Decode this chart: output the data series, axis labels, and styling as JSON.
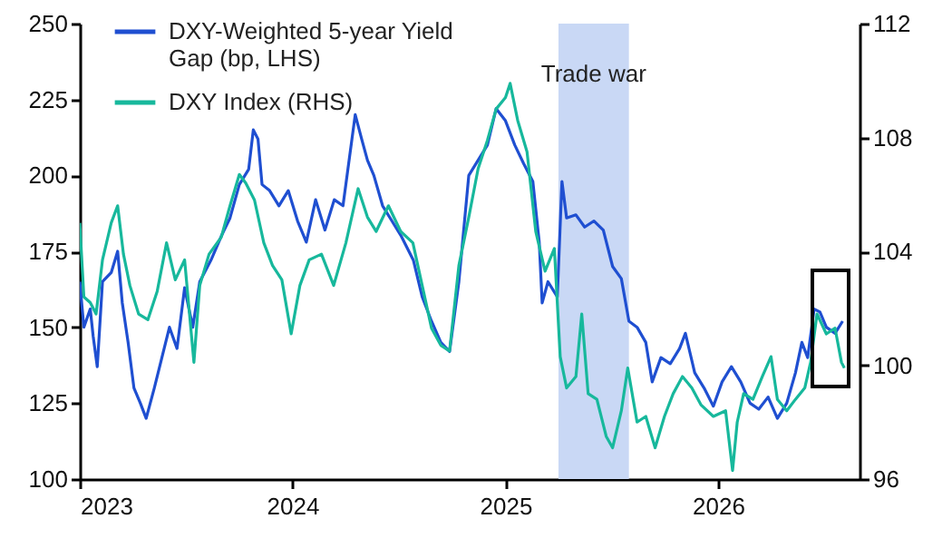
{
  "chart_data": {
    "type": "line",
    "xlim": [
      "2023-01-01",
      "2026-09-01"
    ],
    "xticks": [
      "2023",
      "2024",
      "2025",
      "2026"
    ],
    "ylim": [
      100,
      250
    ],
    "yticks": [
      100,
      125,
      150,
      175,
      200,
      225,
      250
    ],
    "y2lim": [
      96,
      112
    ],
    "y2ticks": [
      96,
      100,
      104,
      108,
      112
    ],
    "legend": "top left",
    "bands": [
      {
        "axis": "x",
        "from": "2025-04-02",
        "to": "2025-08-01",
        "label": "Trade war",
        "color": "#c9d8f5"
      }
    ],
    "series": [
      {
        "name": "DXY-Weighted 5-year Yield Gap (bp, LHS)",
        "color": "#1f4fd1",
        "axis": "y",
        "x": [
          "2023-01-01",
          "2023-01-08",
          "2023-01-19",
          "2023-01-24",
          "2023-01-31",
          "2023-02-09",
          "2023-02-24",
          "2023-03-07",
          "2023-03-15",
          "2023-03-25",
          "2023-04-04",
          "2023-04-15",
          "2023-04-25",
          "2023-05-09",
          "2023-05-22",
          "2023-06-04",
          "2023-06-17",
          "2023-06-30",
          "2023-07-14",
          "2023-07-26",
          "2023-08-14",
          "2023-09-01",
          "2023-09-16",
          "2023-10-02",
          "2023-10-18",
          "2023-10-26",
          "2023-11-03",
          "2023-11-10",
          "2023-11-23",
          "2023-12-09",
          "2023-12-25",
          "2024-01-10",
          "2024-01-25",
          "2024-02-10",
          "2024-02-26",
          "2024-03-13",
          "2024-03-28",
          "2024-04-18",
          "2024-04-29",
          "2024-05-09",
          "2024-05-20",
          "2024-06-04",
          "2024-06-20",
          "2024-07-06",
          "2024-07-27",
          "2024-08-11",
          "2024-08-27",
          "2024-09-12",
          "2024-09-27",
          "2024-10-13",
          "2024-10-30",
          "2024-11-15",
          "2024-12-01",
          "2024-12-16",
          "2025-01-01",
          "2025-01-17",
          "2025-02-01",
          "2025-02-17",
          "2025-02-28",
          "2025-03-05",
          "2025-03-15",
          "2025-03-31",
          "2025-04-08",
          "2025-04-16",
          "2025-05-02",
          "2025-05-17",
          "2025-06-02",
          "2025-06-18",
          "2025-07-04",
          "2025-07-19",
          "2025-08-01",
          "2025-08-15",
          "2025-08-30",
          "2025-09-10",
          "2025-09-25",
          "2025-10-11",
          "2025-10-27",
          "2025-11-06",
          "2025-11-22",
          "2025-12-08",
          "2025-12-24",
          "2026-01-08",
          "2026-01-24",
          "2026-02-09",
          "2026-02-25",
          "2026-03-12",
          "2026-03-28",
          "2026-04-13",
          "2026-04-29",
          "2026-05-14",
          "2026-05-25",
          "2026-06-04",
          "2026-06-15",
          "2026-06-25",
          "2026-07-06",
          "2026-07-21",
          "2026-08-03"
        ],
        "values": [
          165,
          150,
          156,
          147,
          137,
          165,
          168,
          175,
          158,
          145,
          130,
          125,
          120,
          130,
          140,
          150,
          143,
          163,
          150,
          165,
          172,
          180,
          186,
          197,
          202,
          215,
          212,
          197,
          195,
          190,
          195,
          185,
          178,
          192,
          182,
          192,
          190,
          220,
          212,
          205,
          200,
          190,
          185,
          180,
          172,
          160,
          152,
          145,
          142,
          165,
          200,
          205,
          210,
          222,
          218,
          210,
          204,
          198,
          178,
          158,
          165,
          160,
          198,
          186,
          187,
          183,
          185,
          182,
          170,
          166,
          152,
          150,
          145,
          132,
          140,
          138,
          143,
          148,
          135,
          130,
          124,
          132,
          137,
          132,
          125,
          123,
          127,
          120,
          125,
          135,
          145,
          140,
          156,
          155,
          150,
          148,
          152
        ]
      },
      {
        "name": "DXY Index (RHS)",
        "color": "#17b89c",
        "axis": "y2",
        "x": [
          "2023-01-01",
          "2023-01-08",
          "2023-01-19",
          "2023-01-29",
          "2023-02-09",
          "2023-02-24",
          "2023-03-07",
          "2023-03-17",
          "2023-03-28",
          "2023-04-12",
          "2023-04-28",
          "2023-05-14",
          "2023-05-30",
          "2023-06-14",
          "2023-06-30",
          "2023-07-16",
          "2023-07-26",
          "2023-08-11",
          "2023-09-01",
          "2023-09-16",
          "2023-10-02",
          "2023-10-13",
          "2023-10-28",
          "2023-11-13",
          "2023-11-28",
          "2023-12-14",
          "2023-12-30",
          "2024-01-14",
          "2024-01-30",
          "2024-02-20",
          "2024-03-12",
          "2024-04-02",
          "2024-04-23",
          "2024-05-09",
          "2024-05-24",
          "2024-06-14",
          "2024-07-05",
          "2024-07-26",
          "2024-08-11",
          "2024-08-27",
          "2024-09-12",
          "2024-09-27",
          "2024-10-13",
          "2024-10-30",
          "2024-11-15",
          "2024-12-01",
          "2024-12-16",
          "2025-01-01",
          "2025-01-09",
          "2025-01-22",
          "2025-02-07",
          "2025-02-22",
          "2025-03-10",
          "2025-03-26",
          "2025-04-05",
          "2025-04-16",
          "2025-05-02",
          "2025-05-12",
          "2025-05-23",
          "2025-06-07",
          "2025-06-23",
          "2025-07-04",
          "2025-07-19",
          "2025-07-30",
          "2025-08-15",
          "2025-08-30",
          "2025-09-15",
          "2025-10-01",
          "2025-10-16",
          "2025-11-01",
          "2025-11-17",
          "2025-12-03",
          "2025-12-24",
          "2026-01-14",
          "2026-01-26",
          "2026-02-03",
          "2026-02-14",
          "2026-03-02",
          "2026-03-18",
          "2026-04-02",
          "2026-04-13",
          "2026-04-29",
          "2026-05-14",
          "2026-05-30",
          "2026-06-09",
          "2026-06-20",
          "2026-07-06",
          "2026-07-21",
          "2026-08-01",
          "2026-08-06"
        ],
        "values": [
          105.0,
          102.4,
          102.2,
          101.8,
          103.7,
          105.0,
          105.6,
          103.9,
          102.8,
          101.8,
          101.6,
          102.6,
          104.3,
          103.0,
          103.7,
          100.1,
          102.8,
          103.9,
          104.5,
          105.6,
          106.7,
          106.4,
          105.8,
          104.3,
          103.5,
          103.0,
          101.1,
          102.8,
          103.7,
          103.9,
          102.8,
          104.3,
          106.2,
          105.2,
          104.7,
          105.6,
          104.7,
          104.3,
          102.8,
          101.3,
          100.7,
          100.5,
          103.5,
          105.2,
          106.9,
          107.9,
          109.0,
          109.4,
          109.9,
          108.6,
          107.5,
          104.7,
          103.3,
          104.1,
          100.3,
          99.2,
          99.6,
          101.8,
          99.0,
          98.8,
          97.5,
          97.1,
          98.4,
          99.9,
          98.0,
          98.2,
          97.1,
          98.2,
          99.0,
          99.6,
          99.2,
          98.6,
          98.2,
          98.4,
          96.3,
          98.0,
          99.0,
          98.8,
          99.6,
          100.3,
          98.8,
          98.4,
          98.8,
          99.2,
          100.1,
          101.8,
          101.1,
          101.3,
          100.1,
          99.9
        ]
      }
    ]
  }
}
